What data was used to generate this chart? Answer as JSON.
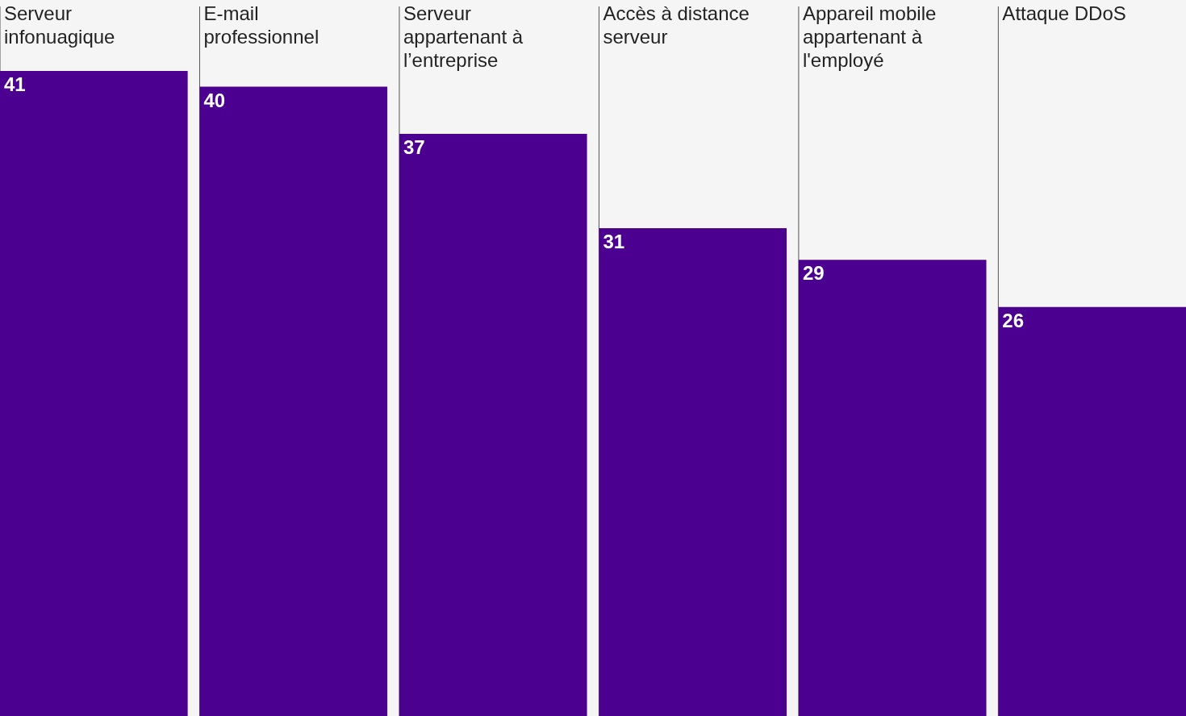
{
  "chart_data": {
    "type": "bar",
    "categories": [
      "Serveur infonuagique",
      "E-mail professionnel",
      "Serveur appartenant à l’entreprise",
      "Accès à distance serveur",
      "Appareil mobile appartenant à l'employé",
      "Attaque DDoS"
    ],
    "values": [
      41,
      40,
      37,
      31,
      29,
      26
    ],
    "color": "#4b0090",
    "data_labels": true
  }
}
